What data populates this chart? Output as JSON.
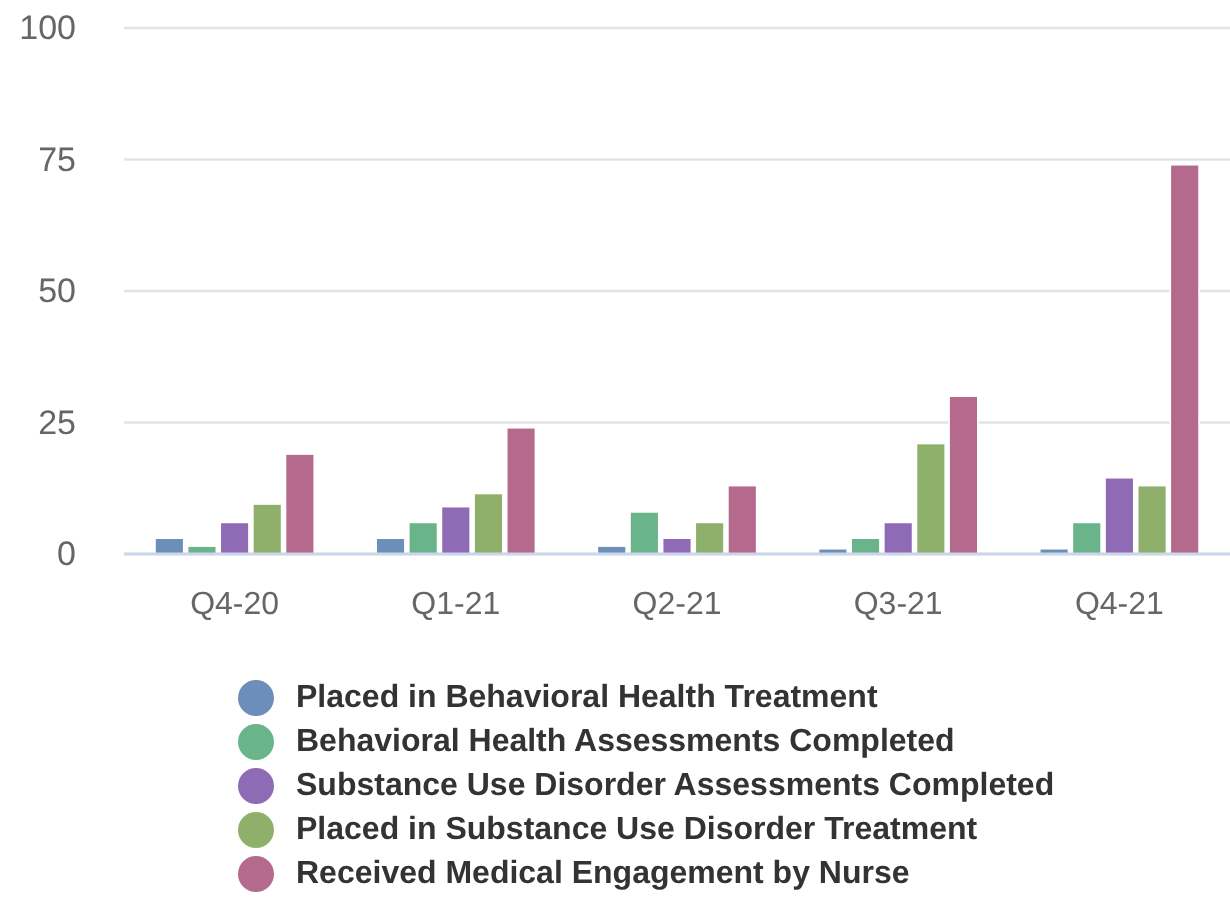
{
  "chart_data": {
    "type": "bar",
    "categories": [
      "Q4-20",
      "Q1-21",
      "Q2-21",
      "Q3-21",
      "Q4-21"
    ],
    "series": [
      {
        "name": "Placed in Behavioral Health Treatment",
        "color": "#6b8fb8",
        "values": [
          3,
          3,
          1.5,
          1,
          1
        ]
      },
      {
        "name": "Behavioral Health Assessments Completed",
        "color": "#6ab48c",
        "values": [
          1.5,
          6,
          8,
          3,
          6
        ]
      },
      {
        "name": "Substance Use Disorder Assessments Completed",
        "color": "#8f6ab5",
        "values": [
          6,
          9,
          3,
          6,
          14.5
        ]
      },
      {
        "name": "Placed in Substance Use Disorder Treatment",
        "color": "#8eb06a",
        "values": [
          9.5,
          11.5,
          6,
          21,
          13
        ]
      },
      {
        "name": "Received Medical Engagement by Nurse",
        "color": "#b5698c",
        "values": [
          19,
          24,
          13,
          30,
          74
        ]
      }
    ],
    "ylim": [
      0,
      100
    ],
    "yticks": [
      0,
      25,
      50,
      75,
      100
    ],
    "grid": "y",
    "legend": "bottom"
  }
}
